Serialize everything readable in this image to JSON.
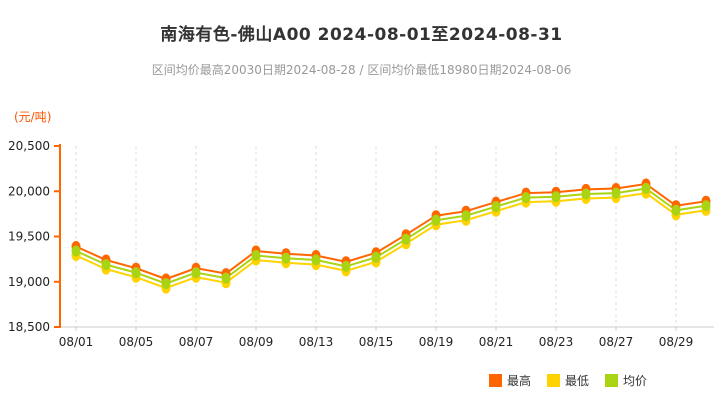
{
  "header": {
    "title": "南海有色-佛山A00 2024-08-01至2024-08-31",
    "subtitle": "区间均价最高20030日期2024-08-28 / 区间均价最低18980日期2024-08-06"
  },
  "chart_data": {
    "type": "line",
    "title": "南海有色-佛山A00 2024-08-01至2024-08-31",
    "ylabel": "(元/吨)",
    "xlabel": "",
    "ylim": [
      18500,
      20500
    ],
    "yticks": [
      18500,
      19000,
      19500,
      20000,
      20500
    ],
    "ytick_labels": [
      "18,500",
      "19,000",
      "19,500",
      "20,000",
      "20,500"
    ],
    "x": [
      "08/01",
      "08/02",
      "08/05",
      "08/06",
      "08/07",
      "08/08",
      "08/09",
      "08/12",
      "08/13",
      "08/14",
      "08/15",
      "08/16",
      "08/19",
      "08/20",
      "08/21",
      "08/22",
      "08/23",
      "08/26",
      "08/27",
      "08/28",
      "08/29",
      "08/30"
    ],
    "x_tick_indices": [
      0,
      2,
      4,
      6,
      8,
      10,
      12,
      14,
      16,
      18,
      20
    ],
    "grid": "vertical-dashed",
    "legend_position": "bottom-right",
    "axis_color": "#ff6600",
    "series": [
      {
        "key": "high",
        "name": "最高",
        "color": "#ff6600",
        "values": [
          19390,
          19240,
          19150,
          19030,
          19150,
          19090,
          19340,
          19310,
          19290,
          19220,
          19320,
          19520,
          19730,
          19780,
          19880,
          19980,
          19990,
          20020,
          20030,
          20080,
          19840,
          19890
        ]
      },
      {
        "key": "low",
        "name": "最低",
        "color": "#ffd200",
        "values": [
          19290,
          19140,
          19050,
          18930,
          19050,
          18990,
          19240,
          19210,
          19190,
          19120,
          19220,
          19420,
          19630,
          19680,
          19780,
          19880,
          19890,
          19920,
          19930,
          19980,
          19740,
          19790
        ]
      },
      {
        "key": "avg",
        "name": "均价",
        "color": "#a8d414",
        "values": [
          19340,
          19190,
          19100,
          18980,
          19100,
          19040,
          19290,
          19260,
          19240,
          19170,
          19270,
          19470,
          19680,
          19730,
          19830,
          19930,
          19940,
          19970,
          19980,
          20030,
          19790,
          19840
        ]
      }
    ],
    "annotations": {
      "max_avg": {
        "value": 20030,
        "date": "2024-08-28"
      },
      "min_avg": {
        "value": 18980,
        "date": "2024-08-06"
      }
    }
  }
}
